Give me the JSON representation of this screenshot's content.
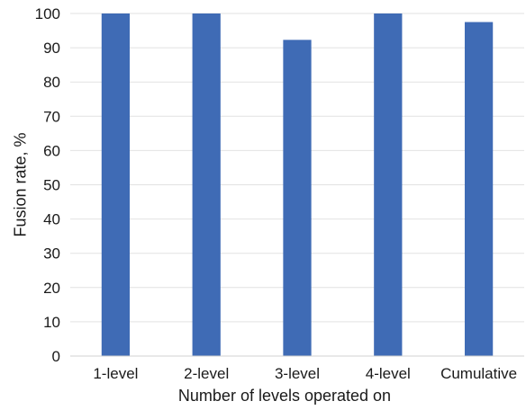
{
  "chart_data": {
    "type": "bar",
    "title": "",
    "xlabel": "Number of levels operated on",
    "ylabel": "Fusion rate, %",
    "categories": [
      "1-level",
      "2-level",
      "3-level",
      "4-level",
      "Cumulative"
    ],
    "values": [
      100,
      100,
      92.3,
      100,
      97.5
    ],
    "ylim": [
      0,
      100
    ],
    "yticks": [
      0,
      10,
      20,
      30,
      40,
      50,
      60,
      70,
      80,
      90,
      100
    ],
    "grid": true,
    "legend": "none",
    "bar_color": "#3f6bb5"
  }
}
